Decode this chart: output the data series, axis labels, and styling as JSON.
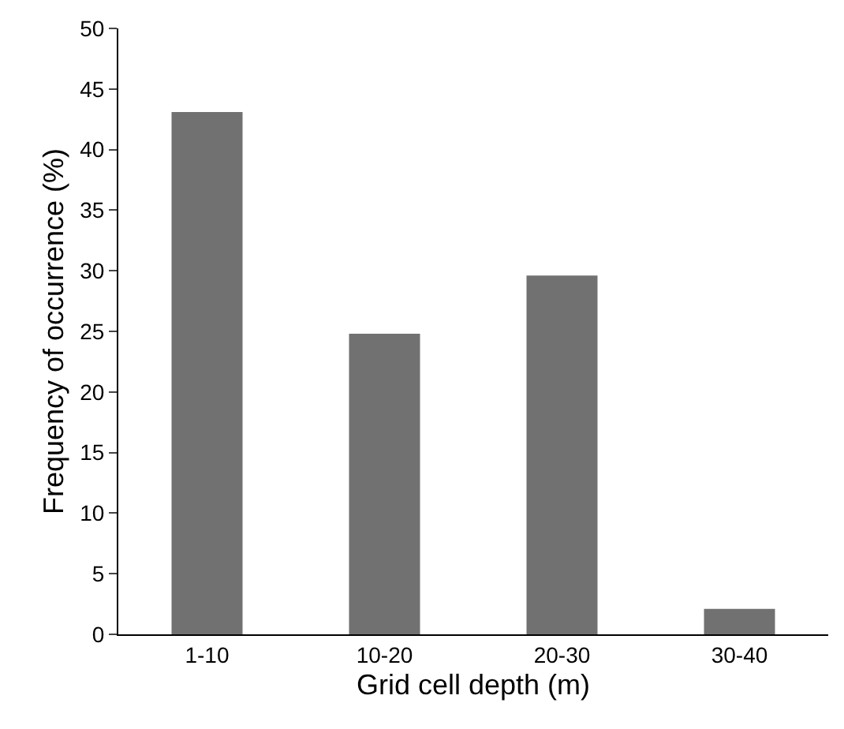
{
  "chart_data": {
    "type": "bar",
    "xlabel": "Grid cell depth (m)",
    "ylabel": "Frequency of occurrence (%)",
    "categories": [
      "1-10",
      "10-20",
      "20-30",
      "30-40"
    ],
    "values": [
      43.1,
      24.8,
      29.6,
      2.1
    ],
    "color": "#717171",
    "ylim": [
      0,
      50
    ],
    "yticks": [
      0,
      5,
      10,
      15,
      20,
      25,
      30,
      35,
      40,
      45,
      50
    ]
  }
}
